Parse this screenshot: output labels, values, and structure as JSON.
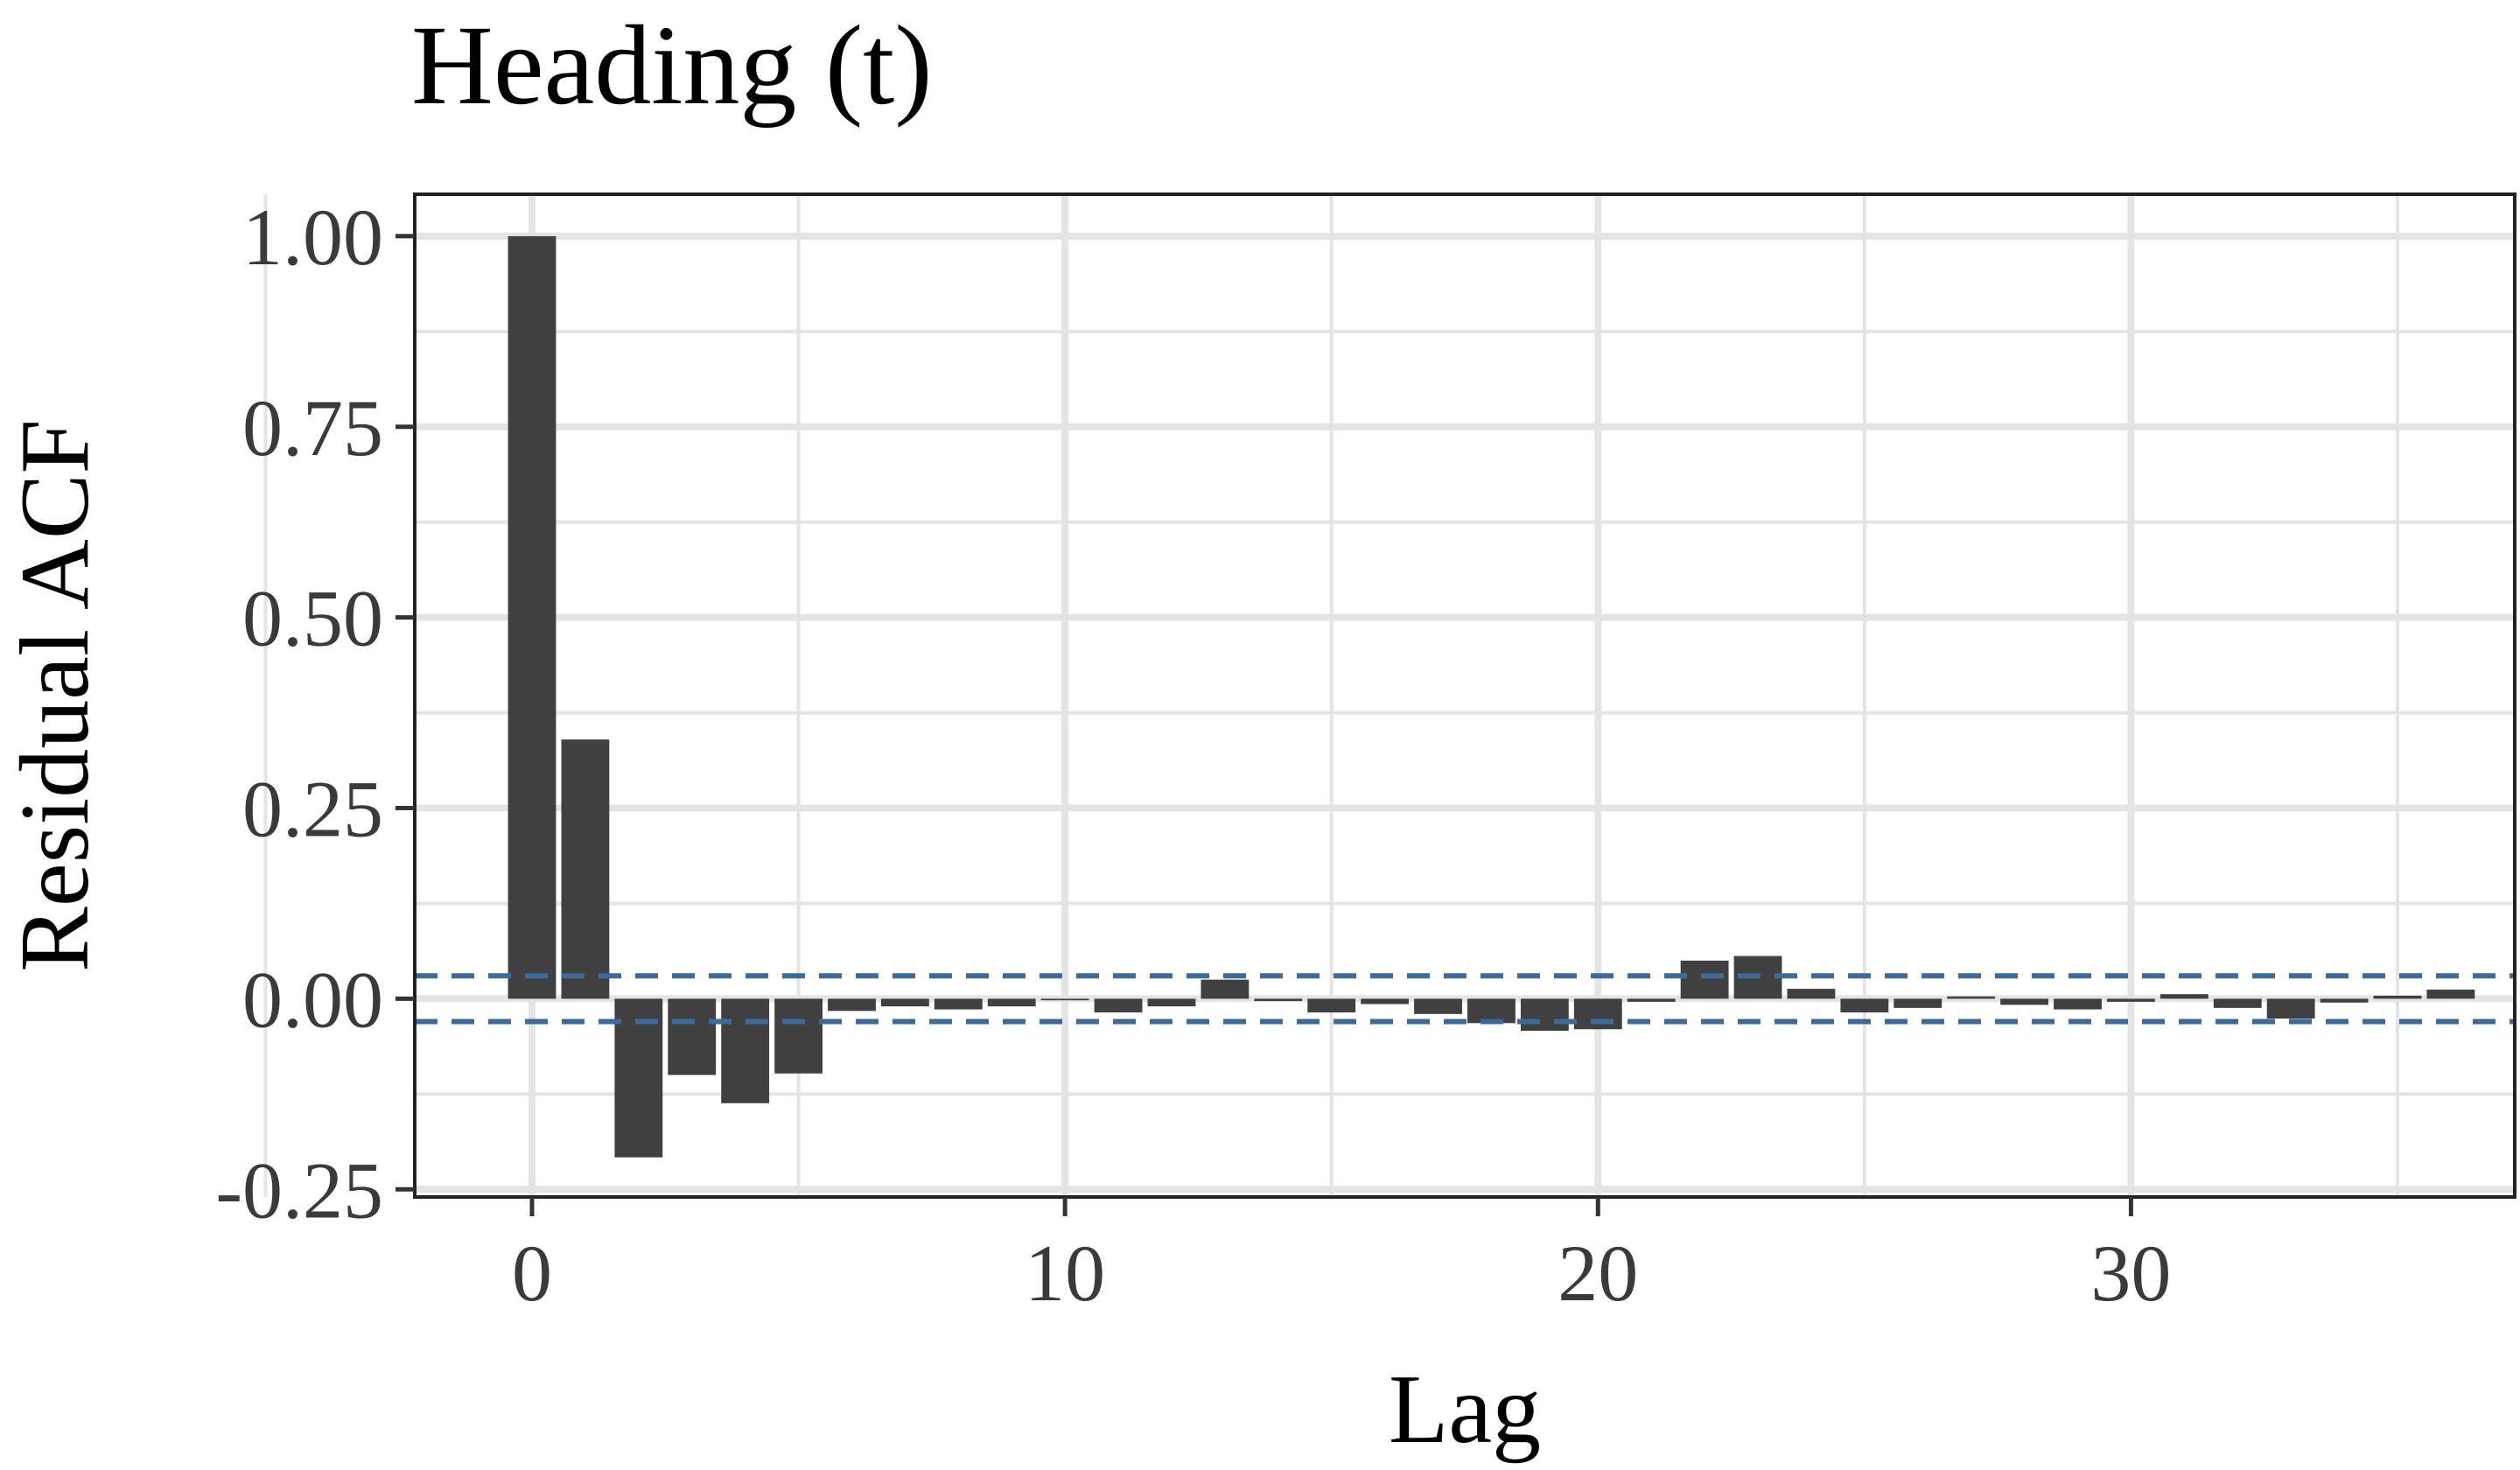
{
  "chart_data": {
    "type": "bar",
    "title": "Heading (t)",
    "xlabel": "Lag",
    "ylabel": "Residual ACF",
    "xlim": [
      -2.2,
      37.2
    ],
    "ylim": [
      -0.26,
      1.055
    ],
    "x_ticks": [
      0,
      10,
      20,
      30
    ],
    "x_tick_labels": [
      "0",
      "10",
      "20",
      "30"
    ],
    "y_ticks": [
      -0.25,
      0,
      0.25,
      0.5,
      0.75,
      1.0
    ],
    "y_tick_labels": [
      "-0.25",
      "0.00",
      "0.25",
      "0.50",
      "0.75",
      "1.00"
    ],
    "grid": true,
    "confidence_bounds": [
      0.03,
      -0.03
    ],
    "lags": [
      0,
      1,
      2,
      3,
      4,
      5,
      6,
      7,
      8,
      9,
      10,
      11,
      12,
      13,
      14,
      15,
      16,
      17,
      18,
      19,
      20,
      21,
      22,
      23,
      24,
      25,
      26,
      27,
      28,
      29,
      30,
      31,
      32,
      33,
      34,
      35,
      36
    ],
    "values": [
      1.0,
      0.34,
      -0.208,
      -0.1,
      -0.137,
      -0.098,
      -0.016,
      -0.01,
      -0.014,
      -0.01,
      -0.002,
      -0.018,
      -0.01,
      0.025,
      -0.003,
      -0.018,
      -0.007,
      -0.02,
      -0.032,
      -0.042,
      -0.04,
      -0.004,
      0.05,
      0.056,
      0.013,
      -0.018,
      -0.012,
      0.003,
      -0.008,
      -0.014,
      -0.004,
      0.006,
      -0.012,
      -0.026,
      -0.005,
      0.004,
      0.012
    ],
    "colors": {
      "bar": "#404040",
      "bounds": "#3e6a9a",
      "grid": "#e4e4e4",
      "panel_border": "#222222"
    }
  }
}
